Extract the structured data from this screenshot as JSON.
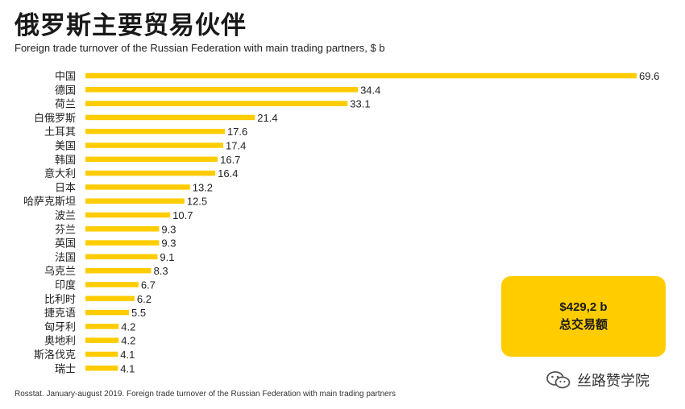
{
  "title": "俄罗斯主要贸易伙伴",
  "subtitle": "Foreign trade turnover of the Russian Federation with main trading partners, $ b",
  "total": {
    "value": "$429,2 b",
    "label": "总交易额"
  },
  "watermark": "丝路赞学院",
  "source": "Rosstat. January-august 2019. Foreign trade turnover of the Russian Federation with main trading partners",
  "colors": {
    "bar": "#ffcc00",
    "text": "#222222"
  },
  "chart_data": {
    "type": "bar",
    "orientation": "horizontal",
    "title": "俄罗斯主要贸易伙伴",
    "subtitle": "Foreign trade turnover of the Russian Federation with main trading partners, $ b",
    "categories": [
      "中国",
      "德国",
      "荷兰",
      "白俄罗斯",
      "土耳其",
      "美国",
      "韩国",
      "意大利",
      "日本",
      "哈萨克斯坦",
      "波兰",
      "芬兰",
      "英国",
      "法国",
      "乌克兰",
      "印度",
      "比利时",
      "捷克语",
      "匈牙利",
      "奥地利",
      "斯洛伐克",
      "瑞士"
    ],
    "values": [
      69.6,
      34.4,
      33.1,
      21.4,
      17.6,
      17.4,
      16.7,
      16.4,
      13.2,
      12.5,
      10.7,
      9.3,
      9.3,
      9.1,
      8.3,
      6.7,
      6.2,
      5.5,
      4.2,
      4.2,
      4.1,
      4.1
    ],
    "value_labels": [
      "69.6",
      "34.4",
      "33.1",
      "21.4",
      "17.6",
      "17.4",
      "16.7",
      "16.4",
      "13.2",
      "12.5",
      "10.7",
      "9.3",
      "9.3",
      "9.1",
      "8.3",
      "6.7",
      "6.2",
      "5.5",
      "4.2",
      "4.2",
      "4.1",
      "4.1"
    ],
    "xlim": [
      0,
      69.6
    ],
    "grid": false,
    "legend": "none"
  }
}
